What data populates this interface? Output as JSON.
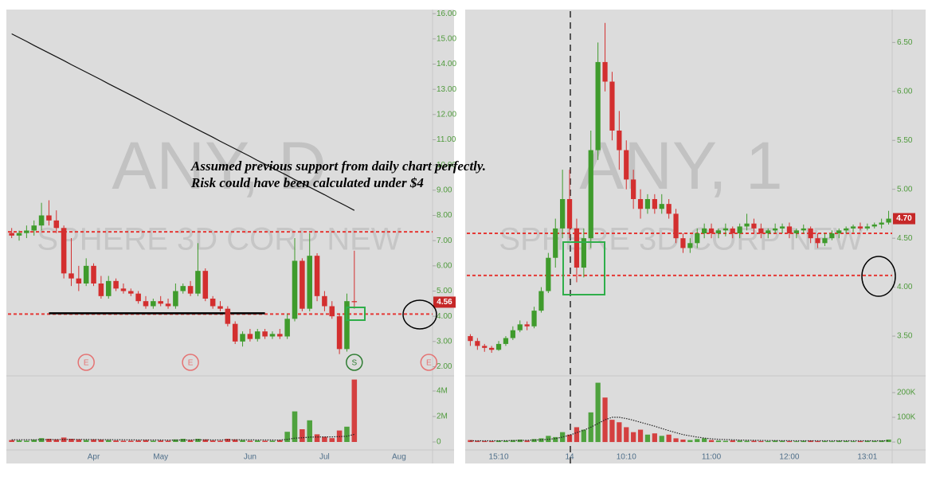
{
  "annotation": [
    "Assumed previous support from daily chart perfectly.",
    "Risk could have been calculated under $4"
  ],
  "chart_data": [
    {
      "type": "candlestick",
      "watermark": "ANY, D",
      "subtitle": "SPHERE 3D CORP NEW",
      "up_color": "#3f9b2c",
      "down_color": "#d32f2f",
      "sma_color": "#111111",
      "categories": [
        null,
        null,
        null,
        null,
        null,
        null,
        null,
        null,
        null,
        null,
        null,
        "Apr",
        null,
        null,
        null,
        null,
        null,
        null,
        null,
        null,
        "May",
        null,
        null,
        null,
        null,
        null,
        null,
        null,
        null,
        null,
        null,
        null,
        "Jun",
        null,
        null,
        null,
        null,
        null,
        null,
        null,
        null,
        null,
        "Jul",
        null,
        null,
        null,
        null,
        null,
        null,
        null,
        null,
        null,
        "Aug",
        null,
        null,
        null,
        null
      ],
      "events": [
        null,
        null,
        null,
        null,
        null,
        null,
        null,
        null,
        null,
        null,
        "E",
        null,
        null,
        null,
        null,
        null,
        null,
        null,
        null,
        null,
        null,
        null,
        null,
        null,
        "E",
        null,
        null,
        null,
        null,
        null,
        null,
        null,
        null,
        null,
        null,
        null,
        null,
        null,
        null,
        null,
        null,
        null,
        null,
        null,
        null,
        null,
        "S",
        null,
        null,
        null,
        null,
        null,
        null,
        null,
        null,
        null,
        "E"
      ],
      "open": [
        7.3,
        7.2,
        7.3,
        7.4,
        7.6,
        8.0,
        7.8,
        7.5,
        5.7,
        5.5,
        5.3,
        6.0,
        5.3,
        4.8,
        5.4,
        5.1,
        5.0,
        4.9,
        4.6,
        4.4,
        4.6,
        4.5,
        4.4,
        5.0,
        5.2,
        4.9,
        5.8,
        4.7,
        4.4,
        4.3,
        3.7,
        3.0,
        3.3,
        3.1,
        3.4,
        3.2,
        3.3,
        3.2,
        3.9,
        6.2,
        4.3,
        6.4,
        4.8,
        4.4,
        4.0,
        2.7,
        4.6,
        null,
        null,
        null,
        null,
        null,
        null,
        null,
        null,
        null,
        null
      ],
      "high": [
        7.5,
        7.4,
        7.6,
        7.8,
        8.5,
        8.6,
        8.2,
        7.6,
        7.1,
        6.0,
        6.3,
        6.1,
        5.6,
        5.6,
        5.5,
        5.3,
        5.1,
        5.0,
        4.8,
        4.7,
        4.8,
        4.7,
        5.3,
        5.3,
        5.4,
        6.9,
        5.9,
        4.8,
        4.6,
        4.4,
        3.8,
        3.4,
        3.5,
        3.5,
        3.5,
        3.4,
        3.5,
        4.1,
        7.1,
        6.3,
        7.3,
        6.5,
        5.0,
        4.6,
        4.1,
        4.9,
        6.6,
        null,
        null,
        null,
        null,
        null,
        null,
        null,
        null,
        null,
        null
      ],
      "low": [
        7.1,
        7.0,
        7.1,
        7.2,
        7.4,
        7.6,
        7.3,
        5.5,
        5.2,
        5.0,
        5.2,
        5.2,
        4.7,
        4.7,
        5.0,
        4.9,
        4.8,
        4.5,
        4.3,
        4.3,
        4.4,
        4.3,
        4.3,
        4.9,
        4.8,
        4.8,
        4.6,
        4.3,
        4.2,
        3.6,
        2.9,
        2.8,
        3.0,
        3.0,
        3.1,
        3.1,
        3.1,
        3.1,
        3.8,
        4.2,
        4.2,
        4.6,
        4.2,
        3.9,
        2.5,
        2.6,
        4.3,
        null,
        null,
        null,
        null,
        null,
        null,
        null,
        null,
        null,
        null
      ],
      "close": [
        7.2,
        7.3,
        7.4,
        7.6,
        8.0,
        7.8,
        7.5,
        5.7,
        5.5,
        5.3,
        6.0,
        5.3,
        4.8,
        5.4,
        5.1,
        5.0,
        4.9,
        4.6,
        4.4,
        4.6,
        4.5,
        4.4,
        5.0,
        5.2,
        4.9,
        5.8,
        4.7,
        4.4,
        4.3,
        3.7,
        3.0,
        3.3,
        3.1,
        3.4,
        3.2,
        3.3,
        3.2,
        3.9,
        6.2,
        4.3,
        6.4,
        4.8,
        4.4,
        4.0,
        2.7,
        4.6,
        4.56,
        null,
        null,
        null,
        null,
        null,
        null,
        null,
        null,
        null,
        null
      ],
      "sma": [
        15.2,
        15.05,
        14.9,
        14.74,
        14.59,
        14.44,
        14.29,
        14.14,
        13.98,
        13.83,
        13.68,
        13.53,
        13.38,
        13.22,
        13.07,
        12.92,
        12.77,
        12.62,
        12.46,
        12.31,
        12.16,
        12.01,
        11.86,
        11.7,
        11.55,
        11.4,
        11.25,
        11.1,
        10.94,
        10.79,
        10.64,
        10.49,
        10.34,
        10.18,
        10.03,
        9.88,
        9.73,
        9.58,
        9.42,
        9.27,
        9.12,
        8.97,
        8.82,
        8.66,
        8.51,
        8.36,
        8.2,
        null,
        null,
        null,
        null,
        null,
        null,
        null,
        null,
        null,
        null
      ],
      "volume": [
        150000,
        120000,
        100000,
        180000,
        300000,
        250000,
        200000,
        350000,
        250000,
        200000,
        150000,
        200000,
        180000,
        150000,
        120000,
        100000,
        100000,
        120000,
        150000,
        100000,
        120000,
        100000,
        200000,
        250000,
        150000,
        250000,
        200000,
        120000,
        100000,
        250000,
        200000,
        150000,
        100000,
        120000,
        100000,
        100000,
        150000,
        800000,
        2400000,
        1000000,
        1700000,
        600000,
        400000,
        300000,
        900000,
        1200000,
        4900000,
        null,
        null,
        null,
        null,
        null,
        null,
        null,
        null,
        null,
        null
      ],
      "volume_ma": [
        170000,
        170000,
        170000,
        175000,
        180000,
        185000,
        190000,
        195000,
        200000,
        200000,
        195000,
        190000,
        185000,
        180000,
        175000,
        170000,
        165000,
        160000,
        160000,
        155000,
        155000,
        150000,
        150000,
        155000,
        160000,
        165000,
        165000,
        160000,
        160000,
        165000,
        170000,
        170000,
        165000,
        160000,
        160000,
        155000,
        150000,
        200000,
        300000,
        330000,
        380000,
        390000,
        400000,
        400000,
        420000,
        450000,
        600000,
        null,
        null,
        null,
        null,
        null,
        null,
        null,
        null,
        null,
        null
      ],
      "ylim": [
        1.7,
        16.1
      ],
      "yticks": [
        {
          "value": 2,
          "label": "2.00"
        },
        {
          "value": 3,
          "label": "3.00"
        },
        {
          "value": 4,
          "label": "4.00"
        },
        {
          "value": 5,
          "label": "5.00"
        },
        {
          "value": 6,
          "label": "6.00"
        },
        {
          "value": 7,
          "label": "7.00"
        },
        {
          "value": 8,
          "label": "8.00"
        },
        {
          "value": 9,
          "label": "9.00"
        },
        {
          "value": 10,
          "label": "10.00"
        },
        {
          "value": 11,
          "label": "11.00"
        },
        {
          "value": 12,
          "label": "12.00"
        },
        {
          "value": 13,
          "label": "13.00"
        },
        {
          "value": 14,
          "label": "14.00"
        },
        {
          "value": 15,
          "label": "15.00"
        },
        {
          "value": 16,
          "label": "16.00"
        }
      ],
      "volume_ylim": [
        -625000,
        5000000
      ],
      "volume_yticks": [
        0,
        {
          "value": 2000000,
          "label": "2M"
        },
        {
          "value": 4000000,
          "label": "4M"
        }
      ],
      "last_price": {
        "value": 4.56,
        "label": "4.56"
      },
      "levels": [
        {
          "value": 7.35,
          "color": "#e53935"
        },
        {
          "value": 4.09,
          "color": "#e53935"
        }
      ],
      "support": {
        "value": 4.12,
        "from": 5,
        "to": 34,
        "color": "#000000"
      }
    },
    {
      "type": "candlestick",
      "watermark": "ANY, 1",
      "subtitle": "SPHERE 3D CORP NEW",
      "up_color": "#3f9b2c",
      "down_color": "#d32f2f",
      "categories": [
        null,
        null,
        null,
        null,
        "15:10",
        null,
        null,
        null,
        null,
        null,
        null,
        null,
        null,
        null,
        "14",
        null,
        null,
        null,
        null,
        null,
        null,
        null,
        "10:10",
        null,
        null,
        null,
        null,
        null,
        null,
        null,
        null,
        null,
        null,
        null,
        "11:00",
        null,
        null,
        null,
        null,
        null,
        null,
        null,
        null,
        null,
        null,
        "12:00",
        null,
        null,
        null,
        null,
        null,
        null,
        null,
        null,
        null,
        null,
        "13:01",
        null,
        null,
        null
      ],
      "open": [
        3.5,
        3.45,
        3.4,
        3.38,
        3.36,
        3.42,
        3.48,
        3.56,
        3.62,
        3.6,
        3.76,
        3.96,
        4.3,
        4.6,
        4.9,
        4.6,
        4.2,
        4.5,
        5.4,
        6.3,
        6.1,
        5.6,
        5.4,
        5.1,
        4.9,
        4.8,
        4.9,
        4.8,
        4.85,
        4.75,
        4.5,
        4.4,
        4.45,
        4.55,
        4.6,
        4.55,
        4.58,
        4.6,
        4.55,
        4.62,
        4.65,
        4.6,
        4.55,
        4.58,
        4.6,
        4.62,
        4.55,
        4.58,
        4.6,
        4.5,
        4.45,
        4.5,
        4.55,
        4.58,
        4.6,
        4.62,
        4.6,
        4.62,
        4.64,
        4.66
      ],
      "high": [
        3.52,
        3.48,
        3.42,
        3.4,
        3.45,
        3.5,
        3.6,
        3.66,
        3.65,
        3.8,
        4.0,
        4.35,
        4.7,
        5.2,
        5.2,
        4.7,
        4.6,
        5.6,
        6.5,
        6.7,
        6.2,
        5.8,
        5.5,
        5.2,
        5.0,
        4.95,
        4.95,
        4.95,
        4.9,
        4.8,
        4.55,
        4.5,
        4.6,
        4.65,
        4.65,
        4.6,
        4.65,
        4.62,
        4.65,
        4.75,
        4.7,
        4.65,
        4.6,
        4.65,
        4.65,
        4.66,
        4.6,
        4.64,
        4.62,
        4.55,
        4.55,
        4.58,
        4.6,
        4.62,
        4.64,
        4.66,
        4.65,
        4.66,
        4.7,
        4.78
      ],
      "low": [
        3.4,
        3.36,
        3.34,
        3.33,
        3.35,
        3.4,
        3.46,
        3.54,
        3.56,
        3.58,
        3.74,
        3.94,
        4.2,
        4.5,
        4.5,
        4.05,
        4.1,
        4.4,
        5.3,
        6.0,
        5.5,
        5.2,
        5.0,
        4.8,
        4.7,
        4.75,
        4.75,
        4.75,
        4.7,
        4.45,
        4.35,
        4.35,
        4.4,
        4.5,
        4.5,
        4.5,
        4.52,
        4.5,
        4.5,
        4.58,
        4.55,
        4.5,
        4.5,
        4.55,
        4.55,
        4.5,
        4.5,
        4.55,
        4.45,
        4.4,
        4.42,
        4.48,
        4.5,
        4.55,
        4.56,
        4.58,
        4.58,
        4.6,
        4.6,
        4.64
      ],
      "close": [
        3.45,
        3.4,
        3.38,
        3.36,
        3.42,
        3.48,
        3.56,
        3.62,
        3.6,
        3.76,
        3.96,
        4.3,
        4.6,
        4.9,
        4.6,
        4.2,
        4.5,
        5.4,
        6.3,
        6.1,
        5.6,
        5.4,
        5.1,
        4.9,
        4.8,
        4.9,
        4.8,
        4.85,
        4.75,
        4.5,
        4.4,
        4.45,
        4.55,
        4.6,
        4.55,
        4.58,
        4.6,
        4.55,
        4.62,
        4.65,
        4.6,
        4.55,
        4.58,
        4.6,
        4.62,
        4.55,
        4.58,
        4.6,
        4.5,
        4.45,
        4.5,
        4.55,
        4.58,
        4.6,
        4.62,
        4.6,
        4.62,
        4.64,
        4.66,
        4.7
      ],
      "volume": [
        8000,
        5000,
        4000,
        4000,
        6000,
        5000,
        8000,
        10000,
        6000,
        12000,
        15000,
        25000,
        20000,
        40000,
        30000,
        60000,
        50000,
        120000,
        240000,
        180000,
        90000,
        80000,
        60000,
        40000,
        50000,
        30000,
        35000,
        25000,
        30000,
        15000,
        10000,
        8000,
        12000,
        15000,
        8000,
        6000,
        5000,
        7000,
        6000,
        5000,
        5000,
        4000,
        4000,
        6000,
        5000,
        4000,
        3000,
        5000,
        6000,
        4000,
        4000,
        3000,
        5000,
        4000,
        3000,
        4000,
        5000,
        4000,
        6000,
        10000
      ],
      "volume_ma": [
        5000,
        5000,
        5000,
        5000,
        5000,
        5500,
        6000,
        6500,
        7000,
        8000,
        9000,
        11000,
        14000,
        20000,
        28000,
        38000,
        48000,
        60000,
        75000,
        90000,
        100000,
        100000,
        95000,
        88000,
        80000,
        72000,
        64000,
        55000,
        46000,
        38000,
        30000,
        25000,
        20000,
        16000,
        13000,
        11000,
        10000,
        9000,
        8000,
        7500,
        7000,
        6500,
        6000,
        6000,
        5500,
        5500,
        5000,
        5000,
        5000,
        5000,
        5000,
        5000,
        5000,
        5000,
        5000,
        5000,
        5000,
        5000,
        5000,
        5000
      ],
      "ylim": [
        3.11,
        6.82
      ],
      "yticks": [
        {
          "value": 3.5,
          "label": "3.50"
        },
        {
          "value": 4,
          "label": "4.00"
        },
        {
          "value": 4.5,
          "label": "4.50"
        },
        {
          "value": 5,
          "label": "5.00"
        },
        {
          "value": 5.5,
          "label": "5.50"
        },
        {
          "value": 6,
          "label": "6.00"
        },
        {
          "value": 6.5,
          "label": "6.50"
        }
      ],
      "volume_ylim": [
        -32000,
        258000
      ],
      "volume_yticks": [
        0,
        {
          "value": 100000,
          "label": "100K"
        },
        {
          "value": 200000,
          "label": "200K"
        }
      ],
      "last_price": {
        "value": 4.7,
        "label": "4.70"
      },
      "levels": [
        {
          "value": 4.55,
          "color": "#e53935"
        },
        {
          "value": 4.12,
          "color": "#e53935"
        }
      ]
    }
  ]
}
